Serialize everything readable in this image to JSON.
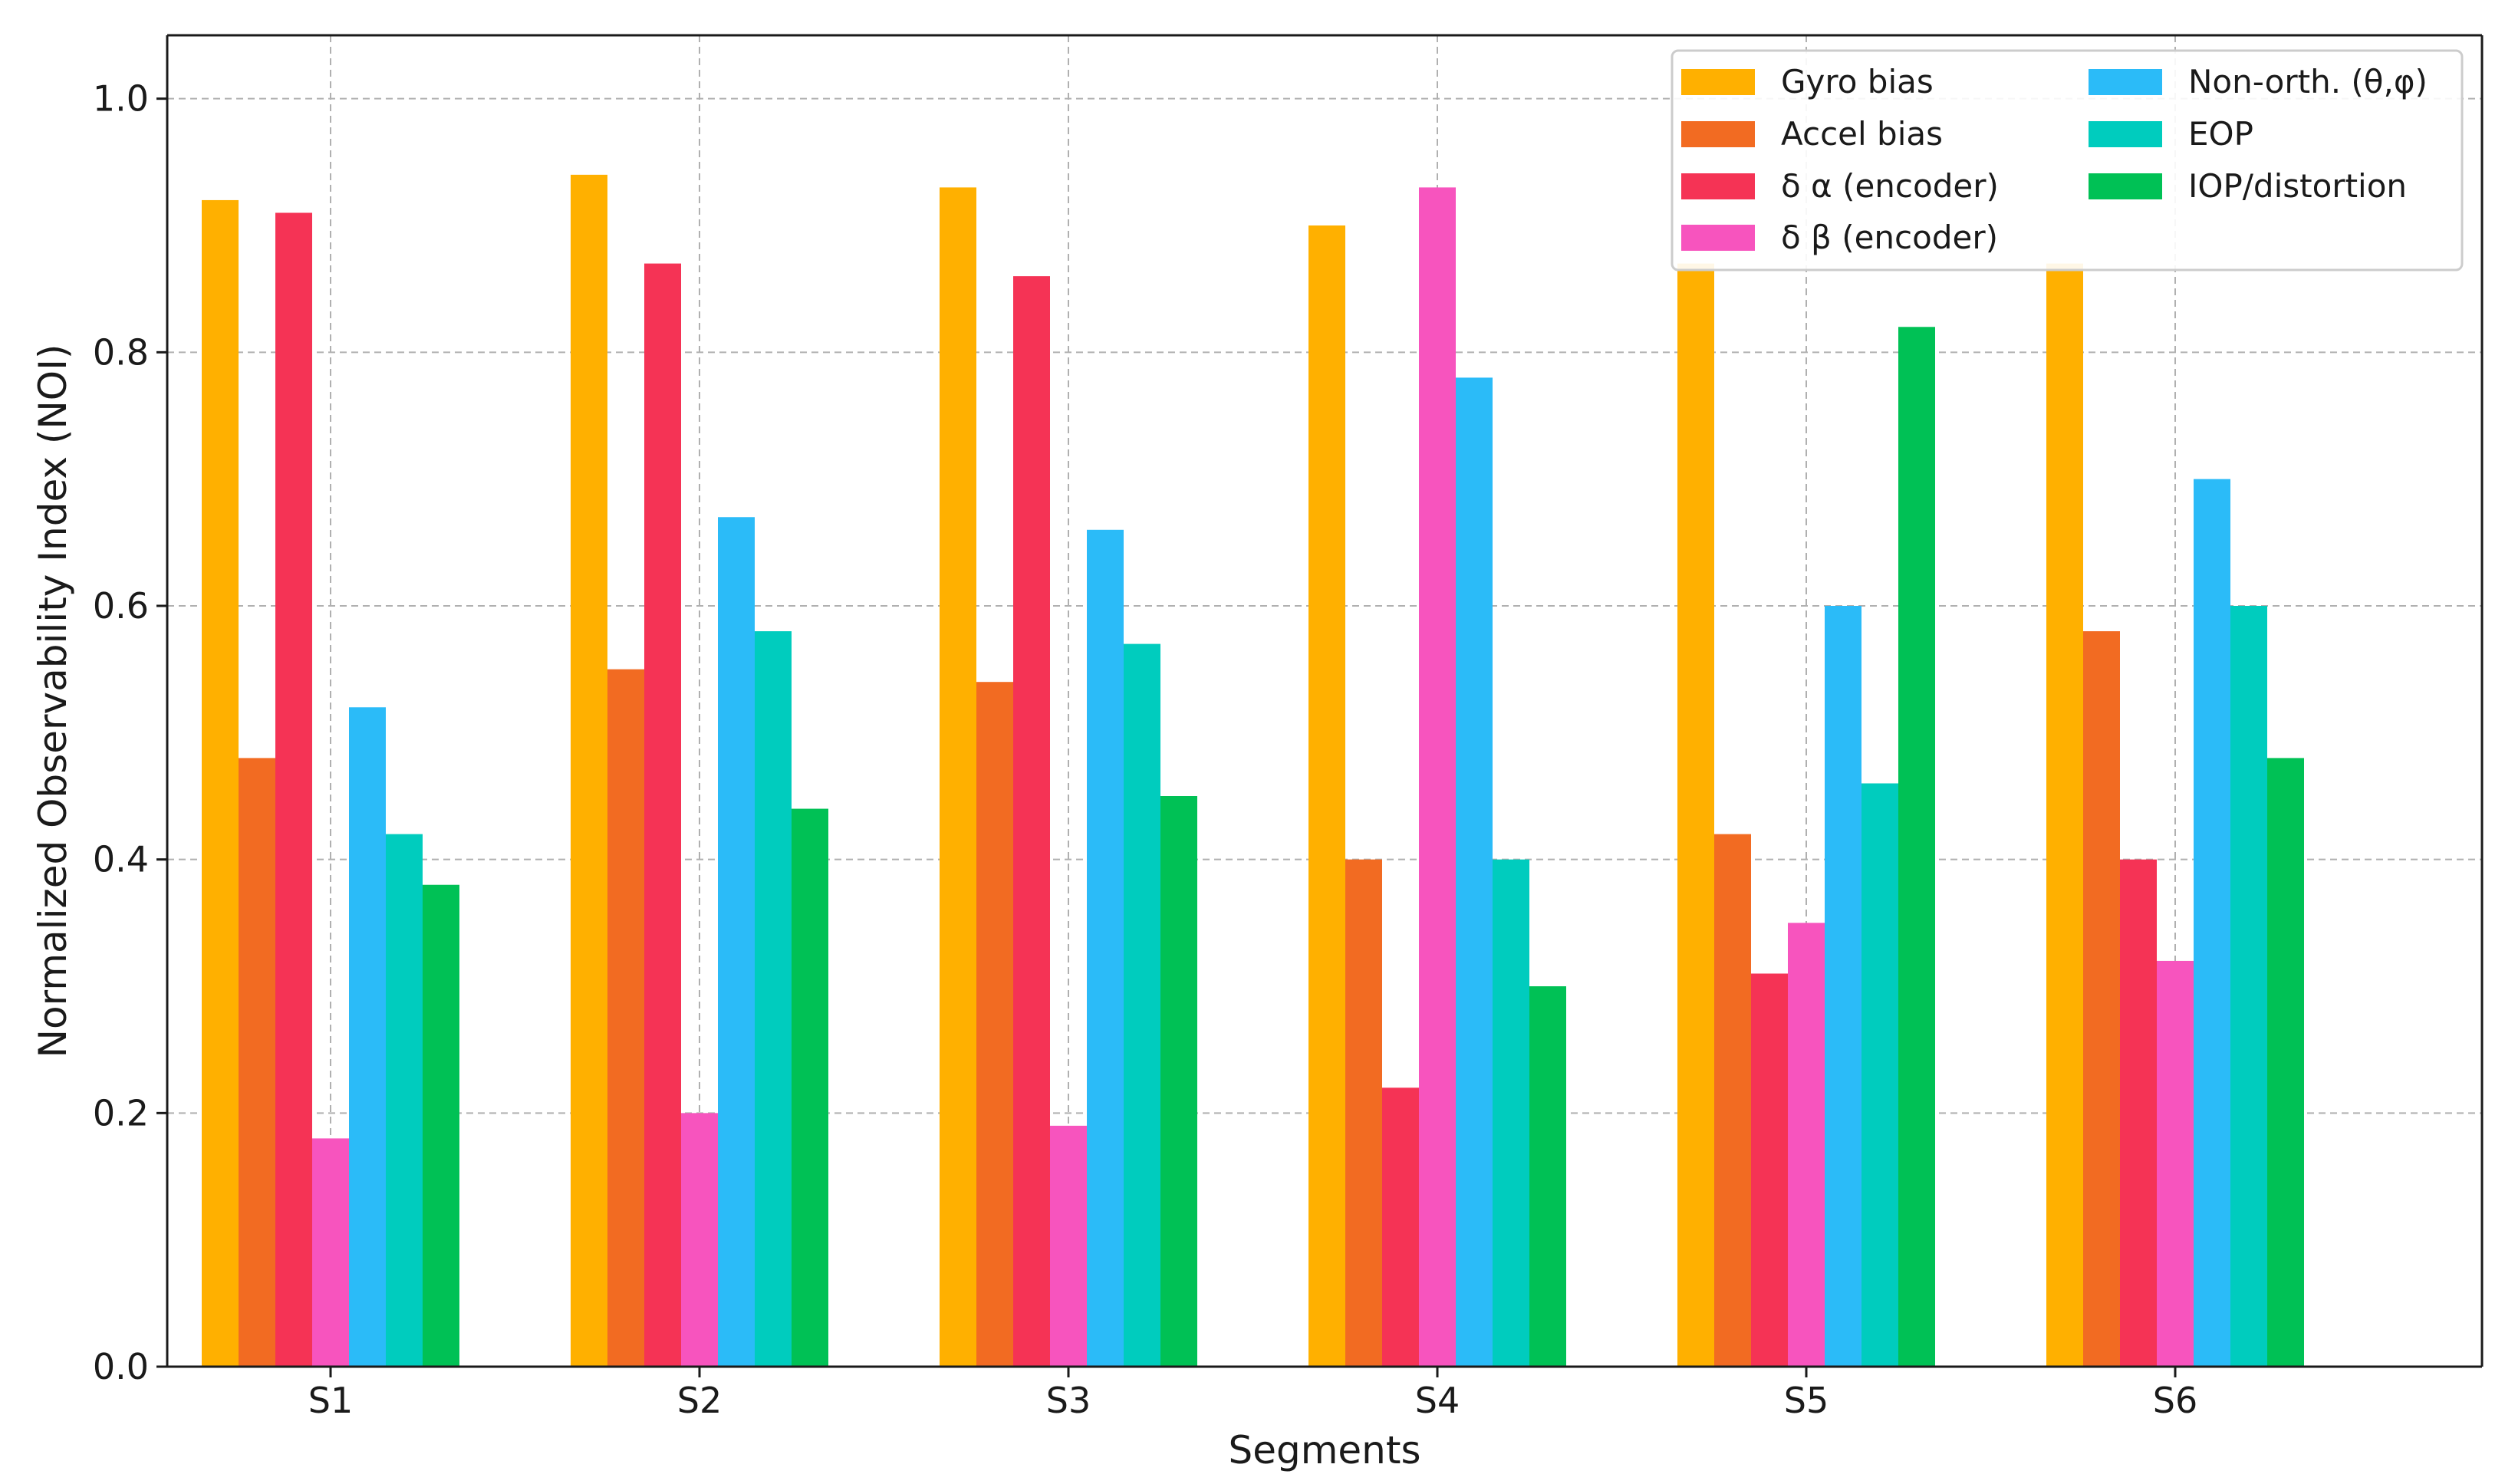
{
  "chart_data": {
    "type": "bar",
    "title": "",
    "xlabel": "Segments",
    "ylabel": "Normalized Observability Index (NOI)",
    "ylim": [
      0,
      1.05
    ],
    "yticks": [
      "0.0",
      "0.2",
      "0.4",
      "0.6",
      "0.8",
      "1.0"
    ],
    "ytick_values": [
      0,
      0.2,
      0.4,
      0.6,
      0.8,
      1.0
    ],
    "grid": true,
    "legend_position": "top-right",
    "categories": [
      "S1",
      "S2",
      "S3",
      "S4",
      "S5",
      "S6"
    ],
    "series": [
      {
        "name": "Gyro bias",
        "color": "#FFB000",
        "values": [
          0.92,
          0.94,
          0.93,
          0.9,
          0.87,
          0.87
        ]
      },
      {
        "name": "Accel bias",
        "color": "#F26B22",
        "values": [
          0.48,
          0.55,
          0.54,
          0.4,
          0.42,
          0.58
        ]
      },
      {
        "name": "δ α (encoder)",
        "color": "#F53355",
        "values": [
          0.91,
          0.87,
          0.86,
          0.22,
          0.31,
          0.4
        ]
      },
      {
        "name": "δ β (encoder)",
        "color": "#F754BE",
        "values": [
          0.18,
          0.2,
          0.19,
          0.93,
          0.35,
          0.32
        ]
      },
      {
        "name": "Non-orth. (θ,φ)",
        "color": "#2BBBF8",
        "values": [
          0.52,
          0.67,
          0.66,
          0.78,
          0.6,
          0.7
        ]
      },
      {
        "name": "EOP",
        "color": "#00CCBE",
        "values": [
          0.42,
          0.58,
          0.57,
          0.4,
          0.46,
          0.6
        ]
      },
      {
        "name": "IOP/distortion",
        "color": "#00C155",
        "values": [
          0.38,
          0.44,
          0.45,
          0.3,
          0.82,
          0.48
        ]
      }
    ]
  }
}
